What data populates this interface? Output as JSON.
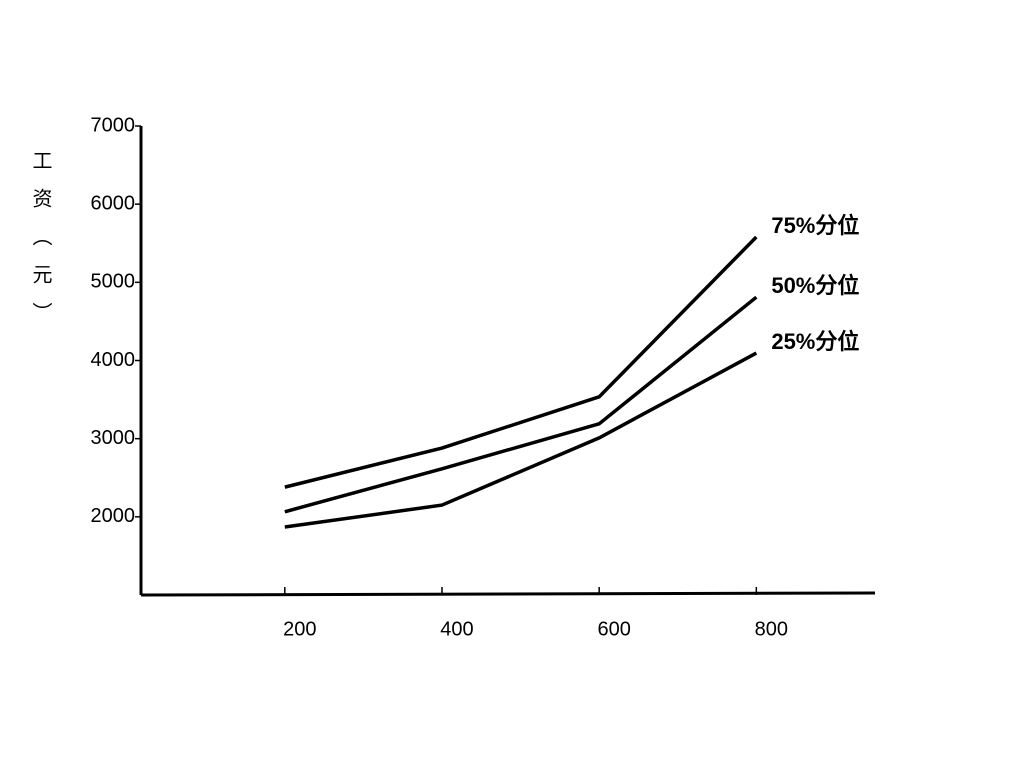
{
  "chart_data": {
    "type": "line",
    "ylabel": "工资（元）",
    "x": [
      200,
      400,
      600,
      800
    ],
    "series": [
      {
        "name": "75%分位",
        "color": "#000000",
        "values": [
          2380,
          2880,
          3535,
          5580
        ]
      },
      {
        "name": "50%分位",
        "color": "#000000",
        "values": [
          2065,
          2615,
          3190,
          4810
        ]
      },
      {
        "name": "25%分位",
        "color": "#000000",
        "values": [
          1870,
          2150,
          3010,
          4095
        ]
      }
    ],
    "xlim": [
      17,
      951
    ],
    "xticks": [
      200,
      400,
      600,
      800
    ],
    "ylim": [
      1000,
      7000
    ],
    "yticks": [
      2000,
      3000,
      4000,
      5000,
      6000,
      7000
    ]
  }
}
